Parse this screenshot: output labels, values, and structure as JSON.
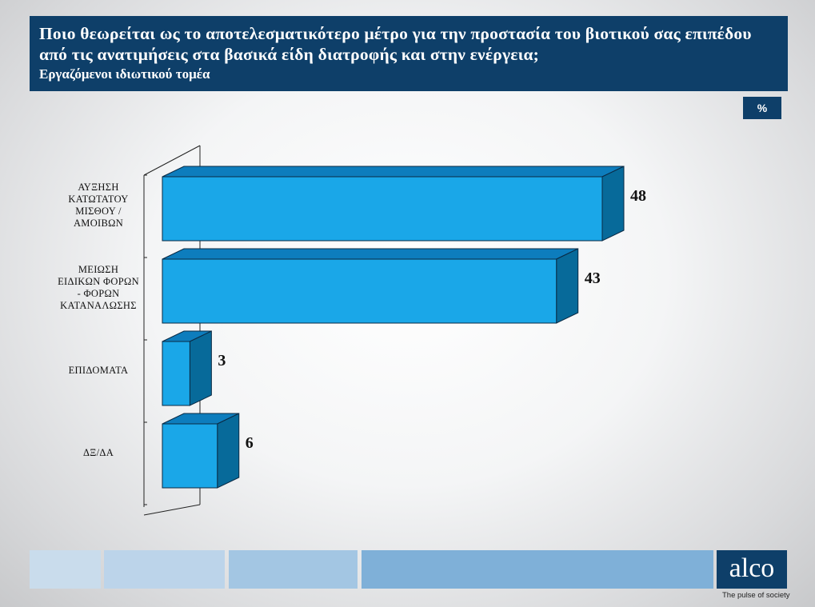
{
  "header": {
    "title": "Ποιο θεωρείται ως το αποτελεσματικότερο μέτρο για την προστασία του βιοτικού σας επιπέδου από τις ανατιμήσεις στα βασικά είδη διατροφής και στην ενέργεια;",
    "subtitle": "Εργαζόμενοι ιδιωτικού τομέα"
  },
  "unit_badge": "%",
  "chart_data": {
    "type": "bar",
    "orientation": "horizontal",
    "style": "3d",
    "categories": [
      "ΑΥΞΗΣΗ ΚΑΤΩΤΑΤΟΥ ΜΙΣΘΟΥ / ΑΜΟΙΒΩΝ",
      "ΜΕΙΩΣΗ ΕΙΔΙΚΩΝ ΦΟΡΩΝ - ΦΟΡΩΝ ΚΑΤΑΝΑΛΩΣΗΣ",
      "ΕΠΙΔΟΜΑΤΑ",
      "ΔΞ/ΔΑ"
    ],
    "category_lines": [
      [
        "ΑΥΞΗΣΗ",
        "ΚΑΤΩΤΑΤΟΥ",
        "ΜΙΣΘΟΥ /",
        "ΑΜΟΙΒΩΝ"
      ],
      [
        "ΜΕΙΩΣΗ",
        "ΕΙΔΙΚΩΝ ΦΟΡΩΝ",
        "- ΦΟΡΩΝ",
        "ΚΑΤΑΝΑΛΩΣΗΣ"
      ],
      [
        "ΕΠΙΔΟΜΑΤΑ"
      ],
      [
        "ΔΞ/ΔΑ"
      ]
    ],
    "values": [
      48,
      43,
      3,
      6
    ],
    "data_labels": [
      "48",
      "43",
      "3",
      "6"
    ],
    "xlim": [
      0,
      48
    ],
    "grid": false,
    "legend": "none",
    "colors": {
      "front": "#1aa7e8",
      "top": "#0d7dbd",
      "side": "#076a9a",
      "edge": "#0a2a44"
    }
  },
  "footer": {
    "logo": "alco",
    "tagline": "The pulse of society",
    "strip_colors": [
      "#c9dcec",
      "#bcd4ea",
      "#a3c6e3",
      "#7fb0d8"
    ]
  }
}
